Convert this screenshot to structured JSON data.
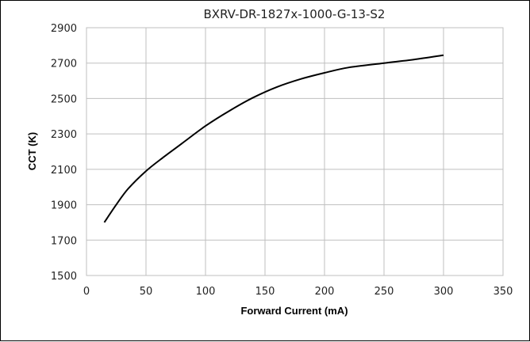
{
  "chart_data": {
    "type": "line",
    "title": "BXRV-DR-1827x-1000-G-13-S2",
    "xlabel": "Forward Current (mA)",
    "ylabel": "CCT (K)",
    "xlim": [
      0,
      350
    ],
    "ylim": [
      1500,
      2900
    ],
    "x_ticks": [
      "0",
      "50",
      "100",
      "150",
      "200",
      "250",
      "300",
      "350"
    ],
    "y_ticks": [
      "1500",
      "1700",
      "1900",
      "2100",
      "2300",
      "2500",
      "2700",
      "2900"
    ],
    "grid": true,
    "legend": "none",
    "line_color": "#000000",
    "series": [
      {
        "x": [
          15,
          25,
          35,
          50,
          65,
          80,
          100,
          120,
          140,
          160,
          180,
          200,
          220,
          250,
          275,
          300
        ],
        "values": [
          1800,
          1900,
          1990,
          2090,
          2170,
          2245,
          2345,
          2430,
          2505,
          2565,
          2610,
          2645,
          2675,
          2700,
          2720,
          2745
        ]
      }
    ]
  }
}
